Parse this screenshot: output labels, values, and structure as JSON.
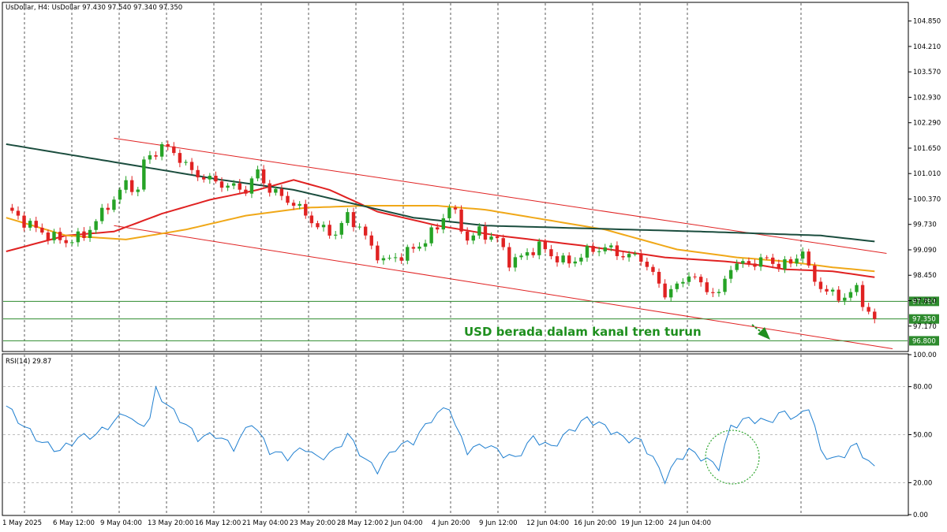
{
  "header": {
    "main": "UsDollar, H4:  UsDollar  97.430 97.540 97.340 97.350",
    "rsi": "RSI(14) 29.87"
  },
  "colors": {
    "bull": "#26a326",
    "bear": "#e02222",
    "ma_fast": "#e02222",
    "ma_mid": "#f0a818",
    "ma_slow": "#1b4d3e",
    "channel": "#e02222",
    "level": "#2e8b2e",
    "rsi": "#1f7fd0",
    "annot": "#1e8f1e"
  },
  "annotation": {
    "text": "USD berada dalam kanal tren turun",
    "arrow_icon": "down-right-arrow-icon"
  },
  "chart_data": [
    {
      "type": "candlestick",
      "name": "UsDollar H4",
      "ohlc_last": {
        "open": 97.43,
        "high": 97.54,
        "low": 97.34,
        "close": 97.35
      },
      "x_ticks": [
        "1 May 2025",
        "6 May 12:00",
        "9 May 04:00",
        "13 May 20:00",
        "16 May 12:00",
        "21 May 04:00",
        "23 May 20:00",
        "28 May 12:00",
        "2 Jun 04:00",
        "4 Jun 20:00",
        "9 Jun 12:00",
        "12 Jun 04:00",
        "16 Jun 20:00",
        "19 Jun 12:00",
        "24 Jun 04:00"
      ],
      "y_ticks": [
        "104.850",
        "104.210",
        "103.570",
        "102.930",
        "102.290",
        "101.650",
        "101.010",
        "100.370",
        "99.730",
        "99.090",
        "98.450",
        "97.810",
        "97.170"
      ],
      "ylim": [
        96.55,
        105.3
      ],
      "price_path": [
        [
          0,
          100.15
        ],
        [
          3,
          99.8
        ],
        [
          7,
          99.45
        ],
        [
          10,
          99.3
        ],
        [
          13,
          99.45
        ],
        [
          17,
          100.2
        ],
        [
          20,
          100.75
        ],
        [
          22,
          100.6
        ],
        [
          23,
          101.3
        ],
        [
          26,
          101.7
        ],
        [
          28,
          101.55
        ],
        [
          31,
          101.05
        ],
        [
          34,
          100.85
        ],
        [
          37,
          100.7
        ],
        [
          40,
          100.6
        ],
        [
          42,
          101.05
        ],
        [
          44,
          100.6
        ],
        [
          47,
          100.35
        ],
        [
          50,
          100.0
        ],
        [
          52,
          99.65
        ],
        [
          55,
          99.5
        ],
        [
          57,
          99.95
        ],
        [
          59,
          99.65
        ],
        [
          61,
          99.15
        ],
        [
          63,
          98.8
        ],
        [
          66,
          98.95
        ],
        [
          69,
          99.2
        ],
        [
          72,
          99.65
        ],
        [
          74,
          100.2
        ],
        [
          75,
          99.95
        ],
        [
          77,
          99.35
        ],
        [
          79,
          99.55
        ],
        [
          82,
          99.35
        ],
        [
          84,
          98.8
        ],
        [
          86,
          98.9
        ],
        [
          89,
          99.2
        ],
        [
          91,
          98.95
        ],
        [
          94,
          98.75
        ],
        [
          97,
          99.05
        ],
        [
          100,
          99.15
        ],
        [
          103,
          98.95
        ],
        [
          106,
          98.9
        ],
        [
          108,
          98.45
        ],
        [
          110,
          98.0
        ],
        [
          112,
          98.15
        ],
        [
          114,
          98.5
        ],
        [
          116,
          98.2
        ],
        [
          119,
          97.95
        ],
        [
          121,
          98.7
        ],
        [
          124,
          98.75
        ],
        [
          127,
          98.85
        ],
        [
          129,
          98.7
        ],
        [
          131,
          98.75
        ],
        [
          133,
          99.1
        ],
        [
          134,
          98.55
        ],
        [
          136,
          98.15
        ],
        [
          138,
          97.95
        ],
        [
          140,
          97.9
        ],
        [
          142,
          98.1
        ],
        [
          144,
          97.5
        ],
        [
          145,
          97.35
        ]
      ],
      "moving_averages": [
        {
          "color_key": "ma_fast",
          "points": [
            [
              0,
              99.05
            ],
            [
              10,
              99.45
            ],
            [
              18,
              99.55
            ],
            [
              26,
              100.0
            ],
            [
              34,
              100.35
            ],
            [
              42,
              100.6
            ],
            [
              48,
              100.85
            ],
            [
              54,
              100.6
            ],
            [
              62,
              100.05
            ],
            [
              72,
              99.7
            ],
            [
              82,
              99.45
            ],
            [
              96,
              99.2
            ],
            [
              110,
              98.9
            ],
            [
              120,
              98.8
            ],
            [
              126,
              98.7
            ],
            [
              130,
              98.6
            ],
            [
              138,
              98.55
            ],
            [
              145,
              98.4
            ]
          ]
        },
        {
          "color_key": "ma_mid",
          "points": [
            [
              0,
              99.9
            ],
            [
              10,
              99.45
            ],
            [
              20,
              99.35
            ],
            [
              30,
              99.6
            ],
            [
              40,
              99.95
            ],
            [
              50,
              100.15
            ],
            [
              60,
              100.2
            ],
            [
              72,
              100.2
            ],
            [
              80,
              100.1
            ],
            [
              90,
              99.85
            ],
            [
              100,
              99.6
            ],
            [
              112,
              99.1
            ],
            [
              122,
              98.9
            ],
            [
              130,
              98.8
            ],
            [
              138,
              98.65
            ],
            [
              145,
              98.55
            ]
          ]
        },
        {
          "color_key": "ma_slow",
          "points": [
            [
              0,
              101.75
            ],
            [
              12,
              101.45
            ],
            [
              24,
              101.15
            ],
            [
              36,
              100.85
            ],
            [
              48,
              100.6
            ],
            [
              58,
              100.25
            ],
            [
              68,
              99.9
            ],
            [
              80,
              99.7
            ],
            [
              92,
              99.65
            ],
            [
              104,
              99.6
            ],
            [
              116,
              99.55
            ],
            [
              126,
              99.5
            ],
            [
              136,
              99.45
            ],
            [
              145,
              99.3
            ]
          ]
        }
      ],
      "channel_lines": [
        {
          "from": [
            18,
            101.9
          ],
          "to": [
            147,
            99.0
          ]
        },
        {
          "from": [
            18,
            99.7
          ],
          "to": [
            148,
            96.6
          ]
        }
      ],
      "price_levels": [
        {
          "label": "97.793",
          "value": 97.793,
          "tag_color": "#2e8b2e"
        },
        {
          "label": "97.350",
          "value": 97.35,
          "tag_color": "#2e8b2e"
        },
        {
          "label": "96.800",
          "value": 96.8,
          "tag_color": "#2e8b2e"
        }
      ]
    },
    {
      "type": "line",
      "name": "RSI(14)",
      "last": 29.87,
      "y_ticks": [
        "100.00",
        "80.00",
        "50.00",
        "20.00",
        "0.00"
      ],
      "levels": [
        80,
        50,
        20
      ],
      "ylim": [
        0,
        100
      ],
      "points": [
        [
          0,
          68
        ],
        [
          3,
          55
        ],
        [
          6,
          45
        ],
        [
          9,
          40
        ],
        [
          12,
          48
        ],
        [
          15,
          50
        ],
        [
          18,
          58
        ],
        [
          20,
          64
        ],
        [
          22,
          55
        ],
        [
          24,
          60
        ],
        [
          25,
          78
        ],
        [
          27,
          68
        ],
        [
          30,
          56
        ],
        [
          32,
          48
        ],
        [
          35,
          50
        ],
        [
          38,
          42
        ],
        [
          41,
          58
        ],
        [
          44,
          40
        ],
        [
          47,
          36
        ],
        [
          50,
          42
        ],
        [
          52,
          35
        ],
        [
          55,
          40
        ],
        [
          57,
          50
        ],
        [
          60,
          34
        ],
        [
          62,
          28
        ],
        [
          65,
          42
        ],
        [
          68,
          46
        ],
        [
          71,
          60
        ],
        [
          74,
          68
        ],
        [
          75,
          55
        ],
        [
          77,
          40
        ],
        [
          80,
          44
        ],
        [
          83,
          38
        ],
        [
          85,
          35
        ],
        [
          88,
          48
        ],
        [
          91,
          42
        ],
        [
          94,
          52
        ],
        [
          97,
          60
        ],
        [
          100,
          55
        ],
        [
          103,
          48
        ],
        [
          106,
          46
        ],
        [
          108,
          35
        ],
        [
          110,
          22
        ],
        [
          112,
          34
        ],
        [
          114,
          40
        ],
        [
          116,
          36
        ],
        [
          119,
          30
        ],
        [
          121,
          55
        ],
        [
          124,
          60
        ],
        [
          127,
          58
        ],
        [
          130,
          64
        ],
        [
          132,
          60
        ],
        [
          134,
          68
        ],
        [
          136,
          40
        ],
        [
          138,
          34
        ],
        [
          140,
          38
        ],
        [
          142,
          44
        ],
        [
          144,
          32
        ],
        [
          145,
          29.87
        ]
      ]
    }
  ]
}
